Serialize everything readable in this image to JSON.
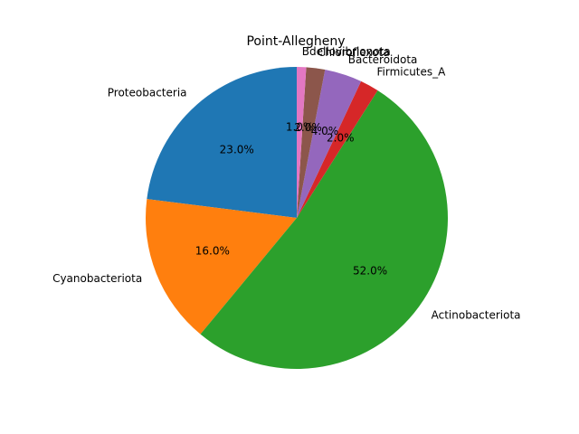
{
  "chart_data": {
    "type": "pie",
    "title": "Point-Allegheny",
    "slices": [
      {
        "label": "Proteobacteria",
        "value": 23.0,
        "pct_label": "23.0%",
        "color": "#1f77b4"
      },
      {
        "label": "Cyanobacteriota",
        "value": 16.0,
        "pct_label": "16.0%",
        "color": "#ff7f0e"
      },
      {
        "label": "Actinobacteriota",
        "value": 52.0,
        "pct_label": "52.0%",
        "color": "#2ca02c"
      },
      {
        "label": "Firmicutes_A",
        "value": 2.0,
        "pct_label": "2.0%",
        "color": "#d62728"
      },
      {
        "label": "Bacteroidota",
        "value": 4.0,
        "pct_label": "4.0%",
        "color": "#9467bd"
      },
      {
        "label": "Chloroflexota",
        "value": 2.0,
        "pct_label": "2.0%",
        "color": "#8c564b"
      },
      {
        "label": "Bdellovibrionota",
        "value": 1.0,
        "pct_label": "1.0%",
        "color": "#e377c2"
      }
    ],
    "start_angle_deg": 90,
    "direction": "counterclockwise"
  }
}
